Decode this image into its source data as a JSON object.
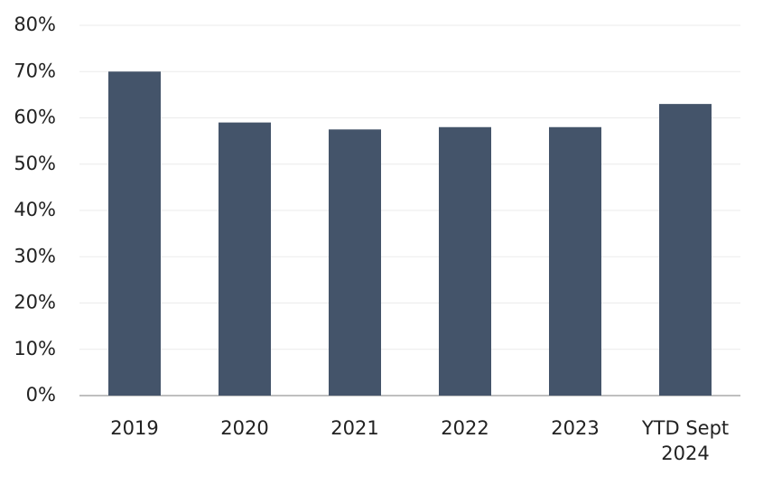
{
  "chart_data": {
    "type": "bar",
    "categories": [
      "2019",
      "2020",
      "2021",
      "2022",
      "2023",
      "YTD Sept 2024"
    ],
    "values": [
      70,
      59,
      57.5,
      58,
      58,
      63
    ],
    "color": "#44546a",
    "ylim": [
      0,
      80
    ],
    "yticks": [
      {
        "value": 0,
        "label": "0%"
      },
      {
        "value": 10,
        "label": "10%"
      },
      {
        "value": 20,
        "label": "20%"
      },
      {
        "value": 30,
        "label": "30%"
      },
      {
        "value": 40,
        "label": "40%"
      },
      {
        "value": 50,
        "label": "50%"
      },
      {
        "value": 60,
        "label": "60%"
      },
      {
        "value": 70,
        "label": "70%"
      },
      {
        "value": 80,
        "label": "80%"
      }
    ],
    "grid": true
  }
}
